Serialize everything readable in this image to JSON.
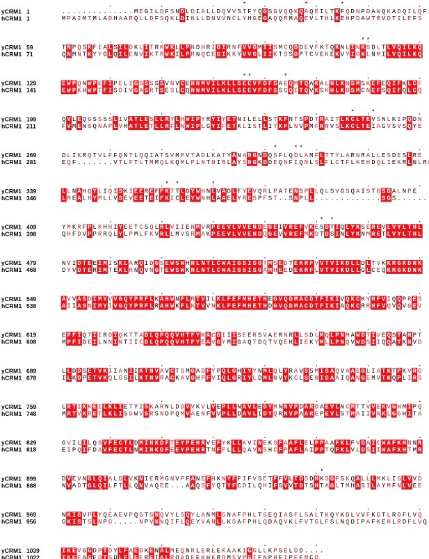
{
  "names": [
    "yCRM1",
    "hCRM1"
  ],
  "star_symbol": "*",
  "dot_symbol": ".",
  "blocks": [
    {
      "y_start": "1",
      "h_start": "1",
      "y_seq": "..............MEGILDFSNDLDIALLDQVVSTFYQGSGVQQKQAQEILTKFQDNPDAWQKADQILQFS",
      "h_seq": "MPAIMTMLADHAARQLLDFSQKLDINLLDNVVNCLYHGEGAQQRMAQEVLTHLKEHPDAWTRVDTILEFS",
      "stars": [
        35,
        47,
        54
      ]
    },
    {
      "y_start": "59",
      "h_start": "71",
      "y_seq": "TNPQSKFIALSILDKLITRKWKLLPNDHRIGIRNFVVGMIISMCQDDEVFKTQKNLINKSDLTLVQILKQ",
      "h_seq": "QNMNTKYYGLQILENVIKTRWKILPRNQCEGIKKYVVGLIIKTSSDPTCVEKEKVYIGKLNMILVQILKQ",
      "stars": [
        58,
        59
      ]
    },
    {
      "y_start": "129",
      "h_start": "141",
      "y_seq": "EWPQNWPEFIPELIGSSSSSVNVCENNMVILKLLSEEVFDFSAEQMTQAKALHLKNSMSKEFEQIFKLCF",
      "h_seq": "EWPKHWPTFISDIVGASRTSESLCQNNMVILKLLSEEVFDFSSGQITQVKSKHLKDSMCNEFSQIFQLCQ",
      "stars": [
        35,
        36,
        43
      ]
    },
    {
      "y_start": "199",
      "h_start": "211",
      "y_seq": "QVLEQGSSSSLIVATLESLLRYLHWIPYRYIYETNILELLSTKFNTSPDTRAITLKCLTEVSNLKIPQDN",
      "h_seq": "FVMENSQNAPLVHATLETLLRFLNWIPLGYIFETKLISTLIYKFLNVPMFRNVSLKCLTEIAGVSVSQYE",
      "stars": [
        56,
        60
      ]
    },
    {
      "y_start": "269",
      "h_start": "281",
      "y_seq": "DLIKRQTVLFFQNTLQQIATSVMPVTADLKATYANANGNDQSFLQDLAMFLTTYLARNRALLESDESLRE",
      "h_seq": "EQF.......VTLFTLTMMQLKQMLPLNTNIRLAYSNGKDDEQNFIQNLSLFLCTFLKEHDQLIEKRLNLRE",
      "stars": [
        41,
        45,
        46
      ]
    },
    {
      "y_start": "339",
      "h_start": "346",
      "y_seq": "LLNAHQYLIQISKIEEREFFKTTLDYWHNLVADLFYEVQRLPATENSPLLQLSVGSQAISTGSGALNPE",
      "h_seq": "LMEALHYMLLVSEVEETEIFKICLEYWNHLAAELYRESPFST..SNPLL.............SGS......",
      "stars": [
        20,
        22,
        29
      ]
    },
    {
      "y_start": "409",
      "h_start": "398",
      "y_seq": "YMKRFPLKHHIYEETCSQLRLVIIENMVRPEEVLVVENDEGEIVREFVKESDTIQLYKSEREVLVYLTHL",
      "h_seq": "QHFDVPPRRQLYLPMLFKVRLLMVSRMAKPEEVLVVENDQGEVVREFMKDTDSINLYKNMRETLVYLTHL",
      "stars": [
        50,
        52
      ]
    },
    {
      "y_start": "479",
      "h_start": "468",
      "y_seq": "NVIDTEEIMISKLARQIDGSEWSWHNLNTLCWAIGSISGTMSEDTEKRFVVTVIKDLLDLTVKKRGKDNK",
      "h_seq": "DYVDTERIMTEKLHNQVNGTEWSWKNLNTLCWAIGSISGAMHEEDEKRFLVTVIKDLLGLCEQKRGKDNK",
      "stars": []
    },
    {
      "y_start": "549",
      "h_start": "538",
      "y_seq": "AVVASDIMYVVGQYPRFLKAHWNFLRTVILKLFEFMHETHEGVQDMACDTFIKIVQKCKYHFVIQQPRES",
      "h_seq": "AIIASNIMYIVGQYPRFLRAHWKFLKTVVNKLFEFMHETHDGVQDMACDTFIKIAQKCRRHFVQVQVGEV",
      "stars": []
    },
    {
      "y_start": "619",
      "h_start": "608",
      "y_seq": "EPFIQTIIRDIQKTTADLQPQQVHTFYKACGIIISEERSVAERNRLLSDLMQLPNMAWDTIVEQSTANPT",
      "h_seq": "MPFIDEILNNINTIICDLQPQQVHTFYEAVGYMIGAQTDQTVQEHLIEKYMLLPNQVWDSIIQQATKNVD",
      "stars": []
    },
    {
      "y_start": "689",
      "h_start": "678",
      "y_seq": "LLDDSETVKIIANIIKTNVAVCTSMGADFYPQLGHIYYNMLQLYRAVSSMISAQVAAEGLIATKTPKVRG",
      "h_seq": "ILKDPETVKQLGSILKTNVRACKAVGHPFVIQLGRIYLDMLNVYKCLSENISAAIQANGEMVTKQPLIRS",
      "stars": []
    },
    {
      "y_start": "759",
      "h_start": "748",
      "y_seq": "LRTIKKEILKLIETYISKARNLDDVVKVLVEPLLNAVLEDYMNNVPDARDAEVLNCMTTVVEKVGHMIPQ",
      "h_seq": "MRTVKRETLKLISGWVSRSNDPQMVAENFVVPLLDAVLIDYQRNVPAAREPEVLSTMAIIVNKLGGHITA",
      "stars": []
    },
    {
      "y_start": "829",
      "h_start": "818",
      "y_seq": "GVILILQSVFECTLDMINKDFTEYPEHRVEFYKLLKVINEKSFAAFLELPPAAFKLFVDAICWAFKHNNR",
      "h_seq": "EIPQIFDAVFECTLNMINKDFEEYPEHRTNFFLLLQAVNSHCFPAFLAIPPTQFKLVLDSIIWAFKHTMR",
      "stars": []
    },
    {
      "y_start": "899",
      "h_start": "888",
      "y_seq": "DVEVNGLQIALDLVKNIERMGNVPFANEFHKNYFFIFVSETFFVLTDSDHKSGFSKQALLLMKLISLVVD",
      "h_seq": "NVADTGLQILFTLLQNVAQEE...AAQSFYQTYFCDILQHIFSVVTDTSHTAGLTMHASILAYMFNLVEE",
      "stars": [
        50
      ]
    },
    {
      "y_start": "969",
      "h_start": "956",
      "y_seq": "NKISVPLYQEAEVPQGTSNQVYLSQYLANMLSNAFPHLTSEQIASFLSALTKQYKDLVVFKGTLRDFLVQ",
      "h_seq": "GKISTSLNPG.....NPVNNQIFLQEYVANLLKSAFPHLQDAQVKLFVTGLFSLNQDIPAFKEHLRDFLVQ",
      "stars": []
    },
    {
      "y_start": "1039",
      "h_start": "1022",
      "y_seq": "IKEVGGDPTDYLFAEDKENALMEQNRLERLEKAAKIGGLLKPSELDD....",
      "h_seq": "IKEFAGEDTSDLFLEEREIALRQADEEKHKRQMSVPGIFNPHEIPEEMCD",
      "stars": []
    }
  ]
}
